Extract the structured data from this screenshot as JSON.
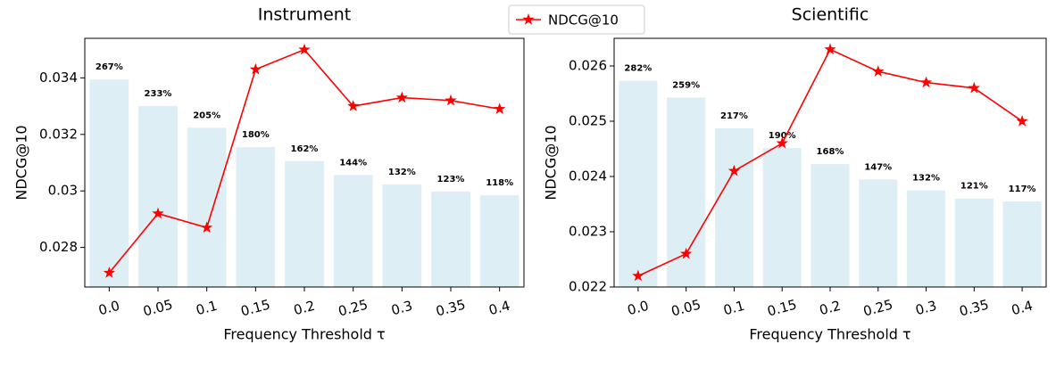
{
  "chart_data": [
    {
      "type": "bar-line",
      "title": "Instrument",
      "x_label": "Frequency Threshold τ",
      "y_label": "NDCG@10",
      "categories": [
        "0.0",
        "0.05",
        "0.1",
        "0.15",
        "0.2",
        "0.25",
        "0.3",
        "0.35",
        "0.4"
      ],
      "bars": {
        "color": "#ddeef4",
        "axis": "y2",
        "values": [
          267,
          233,
          205,
          180,
          162,
          144,
          132,
          123,
          118
        ],
        "value_labels": [
          "267%",
          "233%",
          "205%",
          "180%",
          "162%",
          "144%",
          "132%",
          "123%",
          "118%"
        ]
      },
      "series": [
        {
          "name": "NDCG@10",
          "color": "#ff0000",
          "values": [
            0.0271,
            0.0292,
            0.0287,
            0.0343,
            0.035,
            0.033,
            0.0333,
            0.0332,
            0.0329
          ]
        }
      ],
      "ylim": [
        0.0266,
        0.0354
      ],
      "yticks": [
        0.028,
        0.03,
        0.032,
        0.034
      ],
      "y2lim": [
        0,
        320
      ],
      "legend": "upper center"
    },
    {
      "type": "bar-line",
      "title": "Scientific",
      "x_label": "Frequency Threshold τ",
      "y_label": "NDCG@10",
      "categories": [
        "0.0",
        "0.05",
        "0.1",
        "0.15",
        "0.2",
        "0.25",
        "0.3",
        "0.35",
        "0.4"
      ],
      "bars": {
        "color": "#ddeef4",
        "axis": "y2",
        "values": [
          282,
          259,
          217,
          190,
          168,
          147,
          132,
          121,
          117
        ],
        "value_labels": [
          "282%",
          "259%",
          "217%",
          "190%",
          "168%",
          "147%",
          "132%",
          "121%",
          "117%"
        ]
      },
      "series": [
        {
          "name": "NDCG@10",
          "color": "#ff0000",
          "values": [
            0.0222,
            0.0226,
            0.0241,
            0.0246,
            0.0263,
            0.0259,
            0.0257,
            0.0256,
            0.025
          ]
        }
      ],
      "ylim": [
        0.022,
        0.0265
      ],
      "yticks": [
        0.022,
        0.023,
        0.024,
        0.025,
        0.026
      ],
      "y2lim": [
        0,
        340
      ]
    }
  ]
}
